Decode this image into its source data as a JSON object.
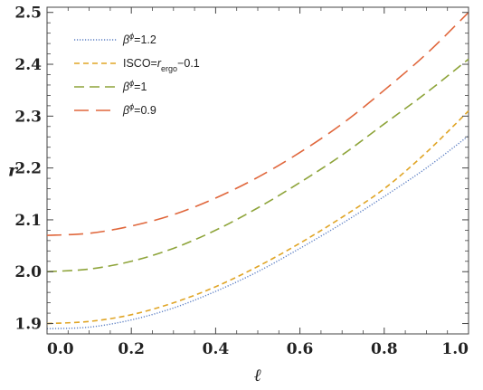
{
  "chart_data": {
    "type": "line",
    "xlabel": "ℓ",
    "ylabel": "r",
    "xlim": [
      0.0,
      1.0
    ],
    "ylim": [
      1.88,
      2.51
    ],
    "xticks": [
      "0.0",
      "0.2",
      "0.4",
      "0.6",
      "0.8",
      "1.0"
    ],
    "yticks": [
      "1.9",
      "2.0",
      "2.1",
      "2.2",
      "2.3",
      "2.4",
      "2.5"
    ],
    "legend_position": "top-left",
    "grid": false,
    "series": [
      {
        "name": "β^φ=1.2",
        "legend": {
          "base": "β",
          "sup": "ϕ",
          "rest": "=1.2"
        },
        "color": "#5c7fc4",
        "style": "dotted",
        "x": [
          0.0,
          0.1,
          0.2,
          0.3,
          0.4,
          0.5,
          0.6,
          0.7,
          0.8,
          0.9,
          1.0
        ],
        "y": [
          1.89,
          1.893,
          1.907,
          1.93,
          1.962,
          2.0,
          2.045,
          2.093,
          2.145,
          2.2,
          2.262
        ]
      },
      {
        "name": "ISCO=r_ergo−0.1",
        "legend": {
          "base": "ISCO=",
          "italic": "r",
          "sub": "ergo",
          "rest": "−0.1"
        },
        "color": "#e0a526",
        "style": "short-dash",
        "x": [
          0.0,
          0.1,
          0.2,
          0.3,
          0.4,
          0.5,
          0.6,
          0.7,
          0.8,
          0.9,
          1.0
        ],
        "y": [
          1.9,
          1.904,
          1.917,
          1.94,
          1.971,
          2.01,
          2.055,
          2.105,
          2.16,
          2.23,
          2.31
        ]
      },
      {
        "name": "β^φ=1",
        "legend": {
          "base": "β",
          "sup": "ϕ",
          "rest": "=1"
        },
        "color": "#8ea43a",
        "style": "medium-dash",
        "x": [
          0.0,
          0.1,
          0.2,
          0.3,
          0.4,
          0.5,
          0.6,
          0.7,
          0.8,
          0.9,
          1.0
        ],
        "y": [
          2.0,
          2.005,
          2.02,
          2.045,
          2.08,
          2.123,
          2.172,
          2.225,
          2.285,
          2.345,
          2.41
        ]
      },
      {
        "name": "β^φ=0.9",
        "legend": {
          "base": "β",
          "sup": "ϕ",
          "rest": "=0.9"
        },
        "color": "#e0673c",
        "style": "long-dash",
        "x": [
          0.0,
          0.1,
          0.2,
          0.3,
          0.4,
          0.5,
          0.6,
          0.7,
          0.8,
          0.9,
          1.0
        ],
        "y": [
          2.07,
          2.074,
          2.088,
          2.11,
          2.142,
          2.182,
          2.23,
          2.285,
          2.35,
          2.42,
          2.5
        ]
      }
    ]
  }
}
